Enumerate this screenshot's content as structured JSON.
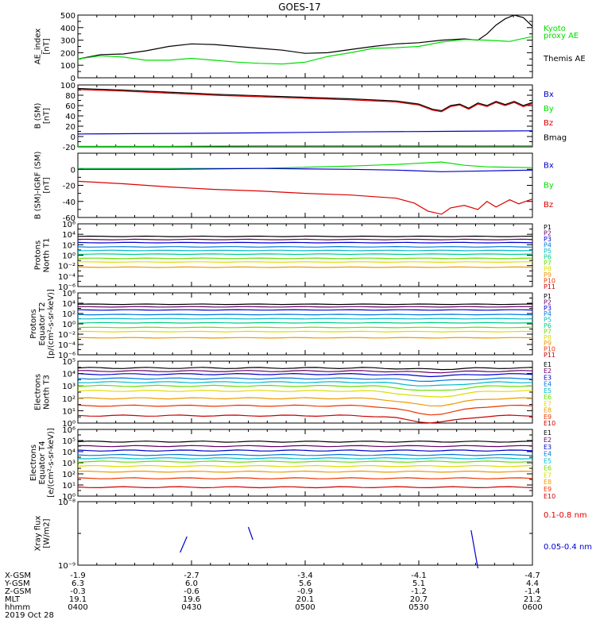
{
  "title": "GOES-17",
  "x_ticks": [
    "0400",
    "0430",
    "0500",
    "0530",
    "0600"
  ],
  "ephemeris": {
    "labels": [
      "X-GSM",
      "Y-GSM",
      "Z-GSM",
      "MLT",
      "hhmm"
    ],
    "date": "2019 Oct 28",
    "columns": [
      [
        "-1.9",
        "6.3",
        "-0.3",
        "19.1",
        "0400"
      ],
      [
        "-2.7",
        "6.0",
        "-0.6",
        "19.6",
        "0430"
      ],
      [
        "-3.4",
        "5.6",
        "-0.9",
        "20.1",
        "0500"
      ],
      [
        "-4.1",
        "5.1",
        "-1.2",
        "20.7",
        "0530"
      ],
      [
        "-4.7",
        "4.4",
        "-1.4",
        "21.2",
        "0600"
      ]
    ]
  },
  "colors": {
    "black": "#000000",
    "green": "#00dd00",
    "blue": "#0000cc",
    "red": "#dd0000"
  },
  "chart_data": [
    {
      "type": "line",
      "name": "ae",
      "ylabel": [
        "AE_index",
        "[nT]"
      ],
      "ylim": [
        0,
        500
      ],
      "yticks": [
        0,
        100,
        200,
        300,
        400,
        500
      ],
      "ytick_labels": [
        "0",
        "100",
        "200",
        "300",
        "400",
        "500"
      ],
      "legend": [
        {
          "label": "Kyoto",
          "color": "#00dd00"
        },
        {
          "label": "proxy AE",
          "color": "#00dd00"
        },
        {
          "label": "Themis AE",
          "color": "#000000"
        }
      ],
      "series": [
        {
          "name": "Themis AE",
          "color": "#000000",
          "x": [
            0,
            0.05,
            0.1,
            0.15,
            0.2,
            0.25,
            0.3,
            0.35,
            0.4,
            0.45,
            0.5,
            0.55,
            0.6,
            0.65,
            0.7,
            0.75,
            0.8,
            0.85,
            0.88,
            0.9,
            0.92,
            0.94,
            0.96,
            0.98,
            1.0
          ],
          "y": [
            150,
            185,
            190,
            215,
            250,
            270,
            265,
            250,
            235,
            220,
            195,
            200,
            225,
            250,
            270,
            280,
            300,
            310,
            300,
            350,
            420,
            470,
            500,
            480,
            410
          ]
        },
        {
          "name": "Kyoto",
          "color": "#00dd00",
          "x": [
            0,
            0.05,
            0.1,
            0.15,
            0.2,
            0.25,
            0.3,
            0.35,
            0.4,
            0.45,
            0.5,
            0.55,
            0.6,
            0.65,
            0.7,
            0.75,
            0.8,
            0.85,
            0.9,
            0.95,
            1.0
          ],
          "y": [
            150,
            175,
            165,
            140,
            140,
            155,
            140,
            125,
            115,
            110,
            125,
            170,
            200,
            235,
            240,
            250,
            285,
            305,
            300,
            290,
            330
          ]
        }
      ]
    },
    {
      "type": "line",
      "name": "bsm",
      "ylabel": [
        "B (SM)",
        "[nT]"
      ],
      "ylim": [
        -20,
        100
      ],
      "yticks": [
        -20,
        0,
        20,
        40,
        60,
        80,
        100
      ],
      "ytick_labels": [
        "-20",
        "0",
        "20",
        "40",
        "60",
        "80",
        "100"
      ],
      "legend": [
        {
          "label": "Bx",
          "color": "#0000cc"
        },
        {
          "label": "By",
          "color": "#00dd00"
        },
        {
          "label": "Bz",
          "color": "#dd0000"
        },
        {
          "label": "Bmag",
          "color": "#000000"
        }
      ],
      "series": [
        {
          "name": "Bmag",
          "color": "#000000",
          "x": [
            0,
            0.1,
            0.2,
            0.3,
            0.4,
            0.5,
            0.6,
            0.7,
            0.75,
            0.78,
            0.8,
            0.82,
            0.84,
            0.86,
            0.88,
            0.9,
            0.92,
            0.94,
            0.96,
            0.98,
            1.0
          ],
          "y": [
            93,
            90,
            86,
            82,
            79,
            76,
            73,
            69,
            63,
            53,
            50,
            60,
            63,
            55,
            65,
            60,
            68,
            62,
            68,
            60,
            66
          ]
        },
        {
          "name": "Bz",
          "color": "#dd0000",
          "x": [
            0,
            0.1,
            0.2,
            0.3,
            0.4,
            0.5,
            0.6,
            0.7,
            0.75,
            0.78,
            0.8,
            0.82,
            0.84,
            0.86,
            0.88,
            0.9,
            0.92,
            0.94,
            0.96,
            0.98,
            1.0
          ],
          "y": [
            91,
            88,
            84,
            80,
            77,
            74,
            71,
            67,
            61,
            51,
            48,
            58,
            61,
            53,
            63,
            58,
            66,
            60,
            66,
            58,
            64
          ]
        },
        {
          "name": "Bx",
          "color": "#0000cc",
          "x": [
            0,
            0.2,
            0.4,
            0.6,
            0.8,
            1.0
          ],
          "y": [
            5,
            6,
            7,
            9,
            10,
            11
          ]
        },
        {
          "name": "By",
          "color": "#00dd00",
          "x": [
            0,
            0.2,
            0.4,
            0.6,
            0.8,
            1.0
          ],
          "y": [
            -19,
            -19,
            -18,
            -18,
            -18,
            -18
          ]
        }
      ]
    },
    {
      "type": "line",
      "name": "bigrf",
      "ylabel": [
        "B (SM)-IGRF (SM)",
        "[nT]"
      ],
      "ylim": [
        -60,
        20
      ],
      "yticks": [
        -60,
        -40,
        -20,
        0
      ],
      "ytick_labels": [
        "-60",
        "-40",
        "-20",
        "0"
      ],
      "legend": [
        {
          "label": "Bx",
          "color": "#0000cc"
        },
        {
          "label": "By",
          "color": "#00dd00"
        },
        {
          "label": "Bz",
          "color": "#dd0000"
        }
      ],
      "series": [
        {
          "name": "Bz",
          "color": "#dd0000",
          "x": [
            0,
            0.1,
            0.2,
            0.3,
            0.4,
            0.5,
            0.6,
            0.7,
            0.74,
            0.77,
            0.8,
            0.82,
            0.85,
            0.88,
            0.9,
            0.92,
            0.95,
            0.97,
            1.0
          ],
          "y": [
            -15,
            -18,
            -22,
            -25,
            -27,
            -30,
            -32,
            -36,
            -42,
            -52,
            -56,
            -48,
            -45,
            -50,
            -40,
            -47,
            -38,
            -43,
            -37
          ]
        },
        {
          "name": "By",
          "color": "#00dd00",
          "x": [
            0,
            0.2,
            0.4,
            0.6,
            0.7,
            0.8,
            0.85,
            0.9,
            1.0
          ],
          "y": [
            1,
            1,
            1,
            4,
            6,
            9,
            5,
            3,
            2
          ]
        },
        {
          "name": "Bx",
          "color": "#0000cc",
          "x": [
            0,
            0.2,
            0.4,
            0.6,
            0.7,
            0.8,
            0.9,
            1.0
          ],
          "y": [
            0,
            0,
            1,
            0,
            -1,
            -3,
            -2,
            -1
          ]
        }
      ]
    },
    {
      "type": "line",
      "name": "pt1",
      "log": true,
      "ylabel": [
        "Protons",
        "North T1"
      ],
      "ylim": [
        -6,
        6
      ],
      "yticks": [
        -6,
        -4,
        -2,
        0,
        2,
        4,
        6
      ],
      "ytick_labels": [
        "10⁻⁶",
        "10⁻⁴",
        "10⁻²",
        "10⁰",
        "10²",
        "10⁴",
        "10⁶"
      ],
      "legend": [
        {
          "label": "P1",
          "color": "#000000"
        },
        {
          "label": "P2",
          "color": "#660066"
        },
        {
          "label": "P3",
          "color": "#0000cc"
        },
        {
          "label": "P4",
          "color": "#0077dd"
        },
        {
          "label": "P5",
          "color": "#00bbcc"
        },
        {
          "label": "P6",
          "color": "#00cc88"
        },
        {
          "label": "P7",
          "color": "#66dd00"
        },
        {
          "label": "P8",
          "color": "#dddd00"
        },
        {
          "label": "P9",
          "color": "#ee9900"
        },
        {
          "label": "P10",
          "color": "#ee3300"
        },
        {
          "label": "P11",
          "color": "#cc0000"
        }
      ],
      "levels": [
        {
          "color": "#000000",
          "y": 3.6
        },
        {
          "color": "#660066",
          "y": 3.0
        },
        {
          "color": "#0000cc",
          "y": 2.4
        },
        {
          "color": "#0077dd",
          "y": 1.6
        },
        {
          "color": "#00bbcc",
          "y": 0.9
        },
        {
          "color": "#00cc88",
          "y": 0.2
        },
        {
          "color": "#66dd00",
          "y": -0.6
        },
        {
          "color": "#dddd00",
          "y": -1.3
        },
        {
          "color": "#ee9900",
          "y": -2.3
        }
      ]
    },
    {
      "type": "line",
      "name": "pt2",
      "log": true,
      "ylabel": [
        "Protons",
        "Equator T2",
        "[p/(cm²-s-sr-keV)]"
      ],
      "ylim": [
        -6,
        6
      ],
      "yticks": [
        -6,
        -4,
        -2,
        0,
        2,
        4,
        6
      ],
      "ytick_labels": [
        "10⁻⁶",
        "10⁻⁴",
        "10⁻²",
        "10⁰",
        "10²",
        "10⁴",
        "10⁶"
      ],
      "legend": [
        {
          "label": "P1",
          "color": "#000000"
        },
        {
          "label": "P2",
          "color": "#660066"
        },
        {
          "label": "P3",
          "color": "#0000cc"
        },
        {
          "label": "P4",
          "color": "#0077dd"
        },
        {
          "label": "P5",
          "color": "#00bbcc"
        },
        {
          "label": "P6",
          "color": "#00cc88"
        },
        {
          "label": "P7",
          "color": "#66dd00"
        },
        {
          "label": "P8",
          "color": "#dddd00"
        },
        {
          "label": "P9",
          "color": "#ee9900"
        },
        {
          "label": "P10",
          "color": "#ee3300"
        },
        {
          "label": "P11",
          "color": "#cc0000"
        }
      ],
      "levels": [
        {
          "color": "#000000",
          "y": 3.8
        },
        {
          "color": "#660066",
          "y": 3.3
        },
        {
          "color": "#0000cc",
          "y": 2.7
        },
        {
          "color": "#0077dd",
          "y": 1.8
        },
        {
          "color": "#00bbcc",
          "y": 1.0
        },
        {
          "color": "#00cc88",
          "y": 0.2
        },
        {
          "color": "#66dd00",
          "y": -0.7
        },
        {
          "color": "#dddd00",
          "y": -1.5
        },
        {
          "color": "#ee9900",
          "y": -2.7
        }
      ]
    },
    {
      "type": "line",
      "name": "et3",
      "log": true,
      "ylabel": [
        "Electrons",
        "North T3"
      ],
      "ylim": [
        0,
        5
      ],
      "yticks": [
        0,
        1,
        2,
        3,
        4,
        5
      ],
      "ytick_labels": [
        "10⁰",
        "10¹",
        "10²",
        "10³",
        "10⁴",
        "10⁵"
      ],
      "legend": [
        {
          "label": "E1",
          "color": "#000000"
        },
        {
          "label": "E2",
          "color": "#660066"
        },
        {
          "label": "E3",
          "color": "#0000cc"
        },
        {
          "label": "E4",
          "color": "#0077dd"
        },
        {
          "label": "E5",
          "color": "#00bbcc"
        },
        {
          "label": "E6",
          "color": "#66dd00"
        },
        {
          "label": "E7",
          "color": "#dddd00"
        },
        {
          "label": "E8",
          "color": "#ee9900"
        },
        {
          "label": "E9",
          "color": "#ee3300"
        },
        {
          "label": "E10",
          "color": "#cc0000"
        }
      ],
      "levels": [
        {
          "color": "#000000",
          "y": 4.45,
          "dip": 0.1
        },
        {
          "color": "#660066",
          "y": 4.2,
          "dip": 0.1
        },
        {
          "color": "#0000cc",
          "y": 3.95,
          "dip": 0.15
        },
        {
          "color": "#0077dd",
          "y": 3.6,
          "dip": 0.2
        },
        {
          "color": "#00bbcc",
          "y": 3.3,
          "dip": 0.3
        },
        {
          "color": "#66dd00",
          "y": 3.0,
          "dip": 0.4
        },
        {
          "color": "#dddd00",
          "y": 2.6,
          "dip": 0.5
        },
        {
          "color": "#ee9900",
          "y": 2.0,
          "dip": 0.6
        },
        {
          "color": "#ee3300",
          "y": 1.4,
          "dip": 0.7
        },
        {
          "color": "#cc0000",
          "y": 0.6,
          "dip": 0.55
        }
      ]
    },
    {
      "type": "line",
      "name": "et4",
      "log": true,
      "ylabel": [
        "Electrons",
        "Equator T4",
        "[e/(cm²-s-sr-keV)]"
      ],
      "ylim": [
        0,
        6
      ],
      "yticks": [
        0,
        1,
        2,
        3,
        4,
        5,
        6
      ],
      "ytick_labels": [
        "10⁰",
        "10¹",
        "10²",
        "10³",
        "10⁴",
        "10⁵",
        "10⁶"
      ],
      "legend": [
        {
          "label": "E1",
          "color": "#000000"
        },
        {
          "label": "E2",
          "color": "#660066"
        },
        {
          "label": "E3",
          "color": "#0000cc"
        },
        {
          "label": "E4",
          "color": "#0077dd"
        },
        {
          "label": "E5",
          "color": "#00bbcc"
        },
        {
          "label": "E6",
          "color": "#66dd00"
        },
        {
          "label": "E7",
          "color": "#dddd00"
        },
        {
          "label": "E8",
          "color": "#ee9900"
        },
        {
          "label": "E9",
          "color": "#ee3300"
        },
        {
          "label": "E10",
          "color": "#cc0000"
        }
      ],
      "levels": [
        {
          "color": "#000000",
          "y": 4.9
        },
        {
          "color": "#660066",
          "y": 4.5
        },
        {
          "color": "#0000cc",
          "y": 4.1
        },
        {
          "color": "#0077dd",
          "y": 3.7
        },
        {
          "color": "#00bbcc",
          "y": 3.4
        },
        {
          "color": "#66dd00",
          "y": 3.1
        },
        {
          "color": "#dddd00",
          "y": 2.7
        },
        {
          "color": "#ee9900",
          "y": 2.2
        },
        {
          "color": "#ee3300",
          "y": 1.6
        },
        {
          "color": "#cc0000",
          "y": 0.8
        }
      ]
    },
    {
      "type": "line",
      "name": "xray",
      "log": true,
      "ylabel": [
        "Xray flux",
        "[W/m2]"
      ],
      "ylim": [
        -9,
        -8
      ],
      "yticks": [
        -9,
        -8
      ],
      "ytick_labels": [
        "10⁻⁹",
        "10⁻⁸"
      ],
      "legend": [
        {
          "label": "0.1-0.8 nm",
          "color": "#dd0000"
        },
        {
          "label": "0.05-0.4 nm",
          "color": "#0000cc"
        }
      ],
      "segments": [
        {
          "color": "#0000cc",
          "x": [
            0.225,
            0.24
          ],
          "y": [
            -8.8,
            -8.55
          ]
        },
        {
          "color": "#0000cc",
          "x": [
            0.375,
            0.385
          ],
          "y": [
            -8.4,
            -8.6
          ]
        },
        {
          "color": "#0000cc",
          "x": [
            0.865,
            0.88
          ],
          "y": [
            -8.45,
            -9.05
          ]
        }
      ]
    }
  ]
}
